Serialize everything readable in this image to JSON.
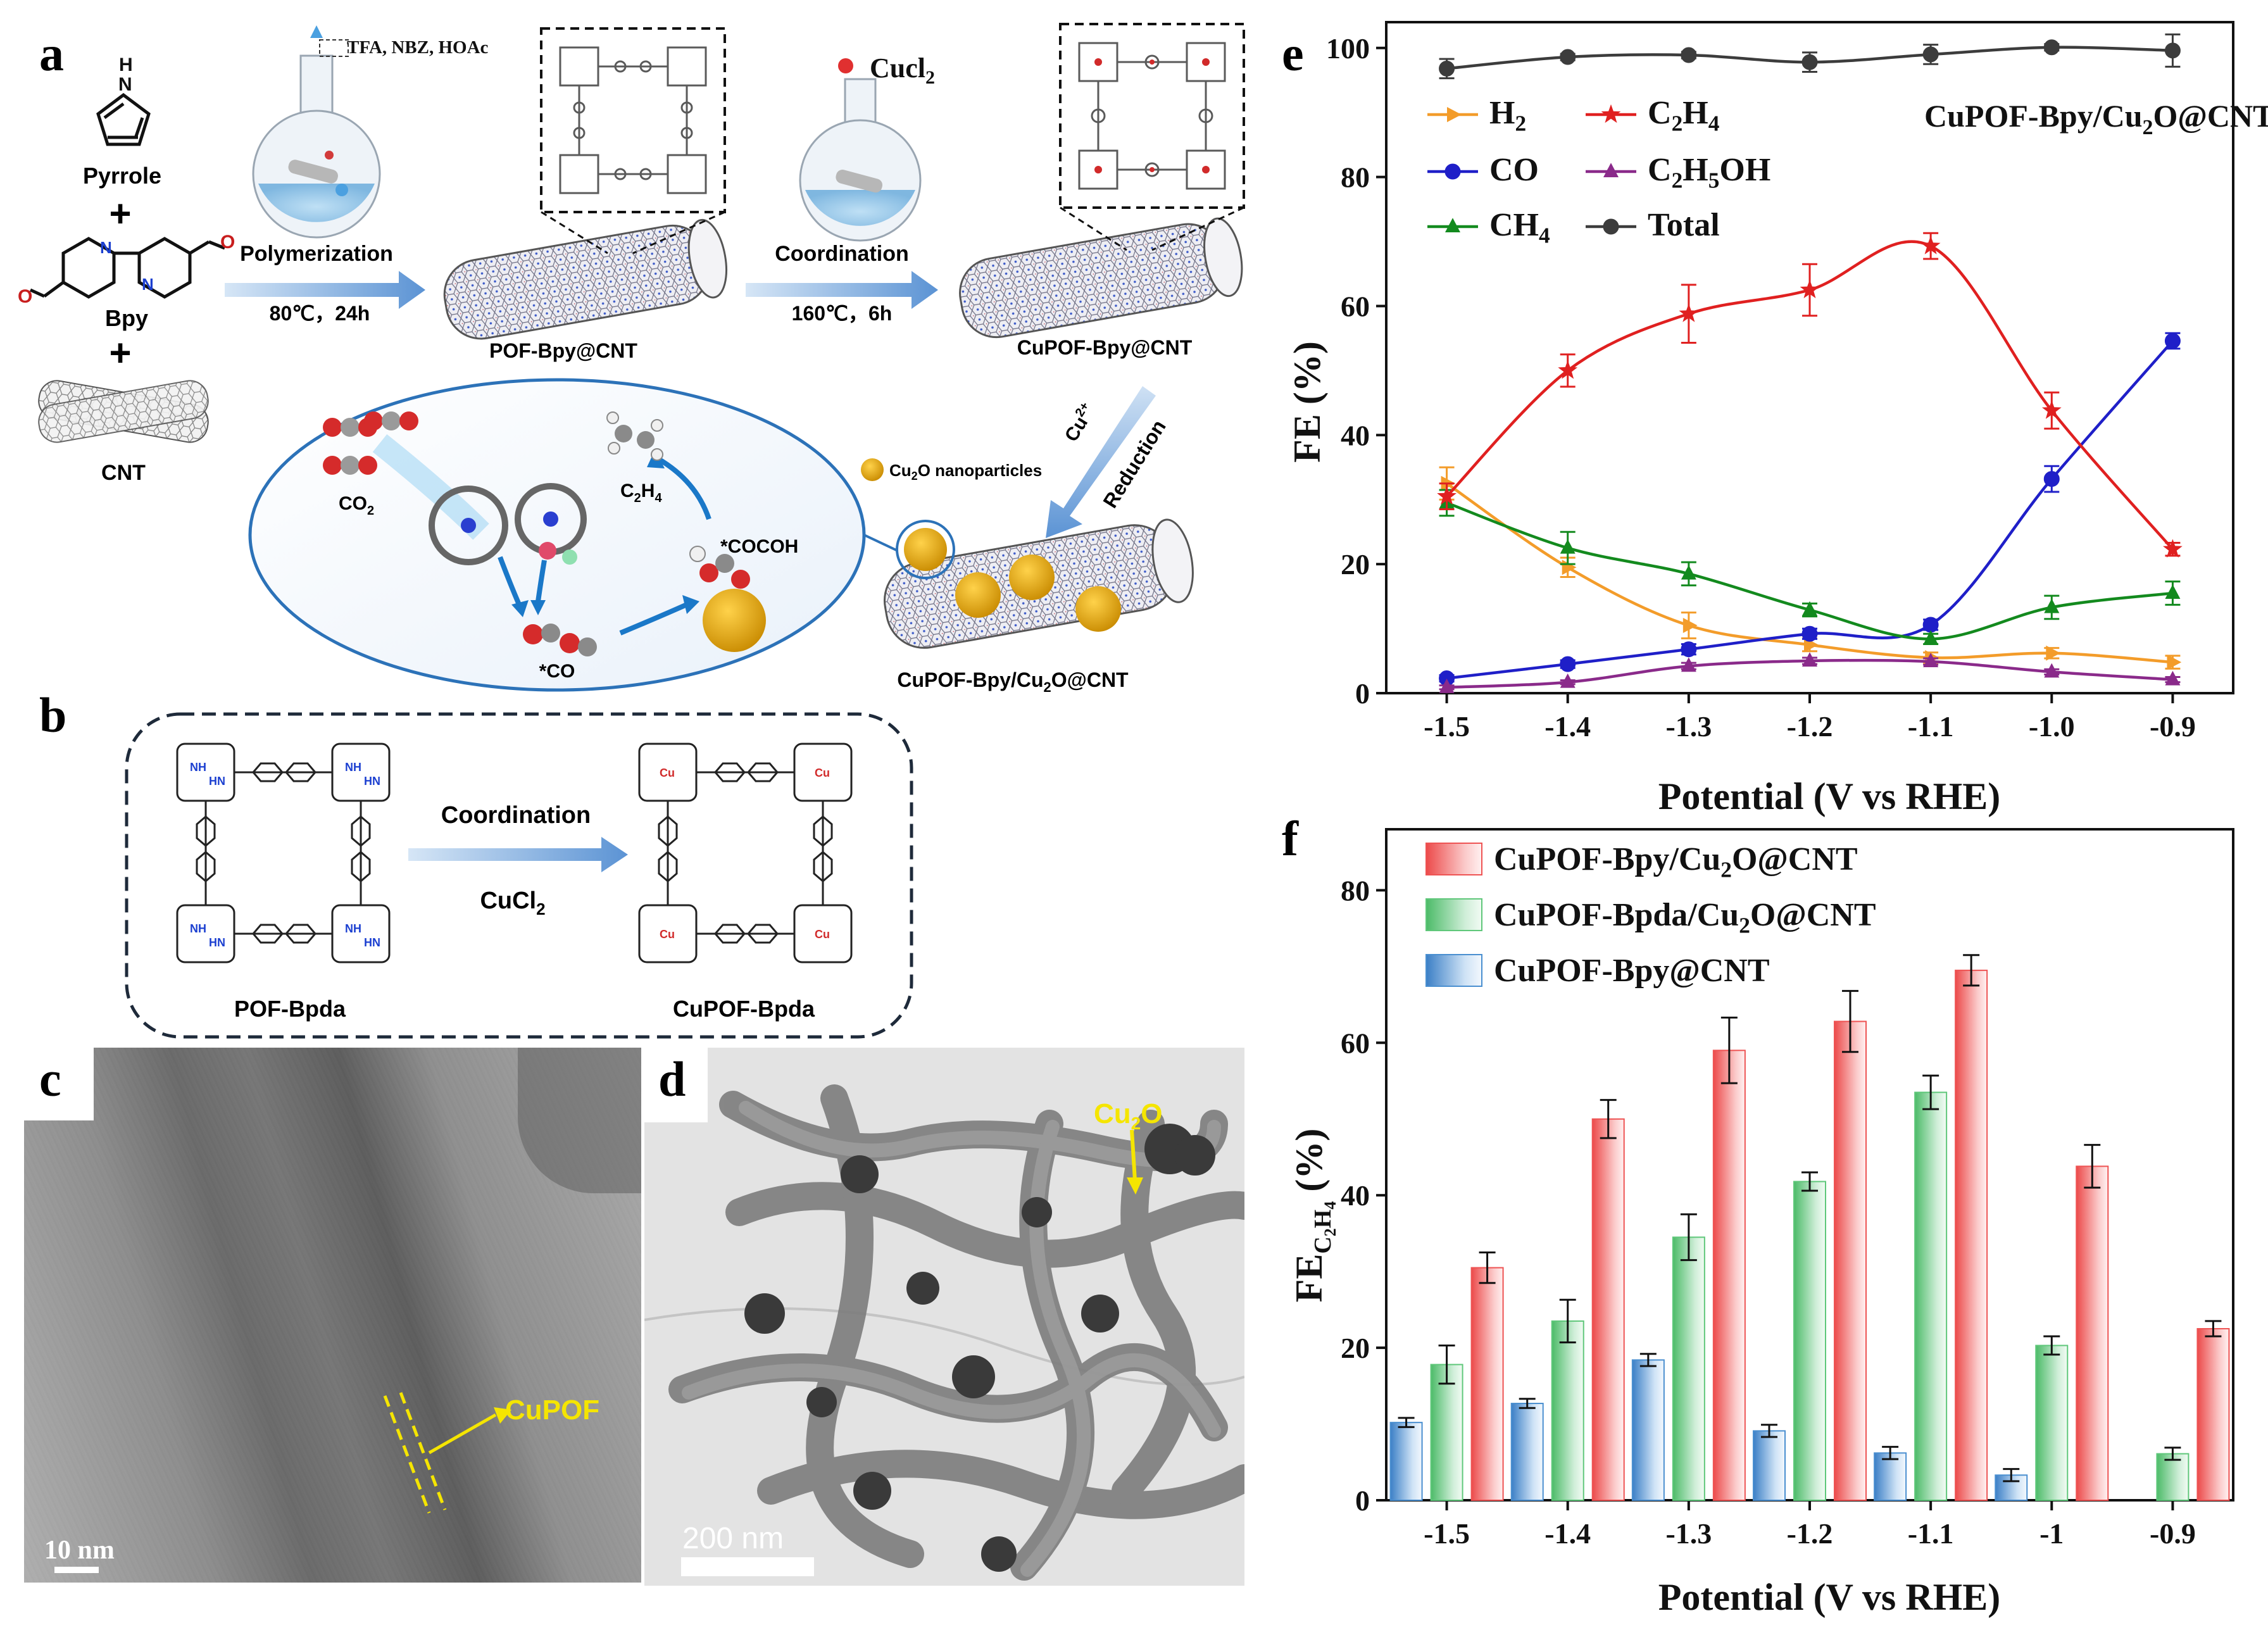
{
  "figure": {
    "panel_a": {
      "label": "a",
      "reactants": {
        "r1": "Pyrrole",
        "r2": "Bpy",
        "r3": "CNT",
        "plus": "+"
      },
      "step1": {
        "reagents": "TFA, NBZ, HOAc",
        "name": "Polymerization",
        "condition": "80℃，24h"
      },
      "product1": "POF-Bpy@CNT",
      "step2": {
        "reagent": "Cucl",
        "reagent_sub": "2",
        "name": "Coordination",
        "condition": "160℃，6h"
      },
      "product2": "CuPOF-Bpy@CNT",
      "step3": {
        "ion": "Cu",
        "ion_sup": "2+",
        "name": "Reduction"
      },
      "product3_pre": "CuPOF-Bpy/Cu",
      "product3_sub": "2",
      "product3_post": "O@CNT",
      "np_label_pre": "Cu",
      "np_label_sub": "2",
      "np_label_post": "O nanoparticles",
      "mech": {
        "co2_pre": "CO",
        "co2_sub": "2",
        "co": "*CO",
        "cocoh": "*COCOH",
        "c2h4_c": "C",
        "c2h4_s1": "2",
        "c2h4_h": "H",
        "c2h4_s2": "4"
      }
    },
    "panel_b": {
      "label": "b",
      "left": "POF-Bpda",
      "right": "CuPOF-Bpda",
      "arrow_top": "Coordination",
      "arrow_bottom_pre": "CuCl",
      "arrow_bottom_sub": "2",
      "nh": "NH",
      "hn": "HN",
      "n": "N",
      "cu": "Cu"
    },
    "panel_c": {
      "label": "c",
      "annotation": "CuPOF",
      "scale": "10 nm"
    },
    "panel_d": {
      "label": "d",
      "annotation_pre": "Cu",
      "annotation_sub": "2",
      "annotation_post": "O",
      "scale": "200 nm"
    }
  },
  "chart_data": [
    {
      "panel": "e",
      "type": "line",
      "xlabel": "Potential (V vs RHE)",
      "ylabel": "FE (%)",
      "title_pre": "CuPOF-Bpy/Cu",
      "title_sub": "2",
      "title_post": "O@CNT",
      "xlim": [
        -1.55,
        -0.85
      ],
      "ylim": [
        0,
        104
      ],
      "x_ticks": [
        "-1.5",
        "-1.4",
        "-1.3",
        "-1.2",
        "-1.1",
        "-1.0",
        "-0.9"
      ],
      "x_tick_values": [
        -1.5,
        -1.4,
        -1.3,
        -1.2,
        -1.1,
        -1.0,
        -0.9
      ],
      "y_ticks": [
        "0",
        "20",
        "40",
        "60",
        "80",
        "100"
      ],
      "y_tick_values": [
        0,
        20,
        40,
        60,
        80,
        100
      ],
      "x": [
        -1.5,
        -1.4,
        -1.3,
        -1.2,
        -1.1,
        -1.0,
        -0.9
      ],
      "series": [
        {
          "name_pre": "H",
          "name_sub": "2",
          "color": "#f39c2a",
          "marker": "triangle-right",
          "values": [
            32.5,
            19.5,
            10.5,
            7.5,
            5.5,
            6.2,
            4.8
          ],
          "errors": [
            2.5,
            1.5,
            2,
            1,
            0.8,
            0.8,
            1
          ]
        },
        {
          "name_pre": "CO",
          "name_sub": "",
          "color": "#1f1fc8",
          "marker": "circle",
          "values": [
            2.3,
            4.5,
            6.8,
            9.2,
            10.6,
            33.2,
            54.6
          ],
          "errors": [
            0.5,
            0.6,
            0.8,
            0.8,
            0.8,
            2,
            1.2
          ]
        },
        {
          "name_pre": "CH",
          "name_sub": "4",
          "color": "#138a1e",
          "marker": "triangle-up",
          "values": [
            29.5,
            22.5,
            18.5,
            12.9,
            8.4,
            13.3,
            15.5
          ],
          "errors": [
            2,
            2.5,
            1.8,
            1,
            0.8,
            1.8,
            1.8
          ]
        },
        {
          "name_pre": "C",
          "name_sub": "2",
          "name_mid": "H",
          "name_sub2": "4",
          "color": "#e02020",
          "marker": "star",
          "values": [
            30.5,
            50,
            58.8,
            62.5,
            69.3,
            43.8,
            22.3
          ],
          "errors": [
            2,
            2.5,
            4.5,
            4,
            2,
            2.8,
            1
          ]
        },
        {
          "name_pre": "C",
          "name_sub": "2",
          "name_mid": "H",
          "name_sub2": "5",
          "name_post": "OH",
          "color": "#8a2a8a",
          "marker": "triangle-up",
          "values": [
            0.9,
            1.7,
            4.2,
            5,
            4.9,
            3.3,
            2.1
          ],
          "errors": [
            0.3,
            0.3,
            0.5,
            0.5,
            0.5,
            0.4,
            0.4
          ]
        },
        {
          "name_pre": "Total",
          "name_sub": "",
          "color": "#3c3c3c",
          "marker": "circle",
          "values": [
            96.8,
            98.6,
            98.9,
            97.8,
            99,
            100.1,
            99.6
          ],
          "errors": [
            1.5,
            0.5,
            0.5,
            1.5,
            1.5,
            0.5,
            2.5
          ]
        }
      ]
    },
    {
      "panel": "f",
      "type": "bar",
      "xlabel": "Potential (V vs RHE)",
      "ylabel_pre": "FE",
      "ylabel_sub1": "C",
      "ylabel_sub2": "2",
      "ylabel_sub3": "H",
      "ylabel_sub4": "4",
      "ylabel_post": " (%)",
      "categories": [
        "-1.5",
        "-1.4",
        "-1.3",
        "-1.2",
        "-1.1",
        "-1",
        "-0.9"
      ],
      "ylim": [
        0,
        88
      ],
      "y_ticks": [
        "0",
        "20",
        "40",
        "60",
        "80"
      ],
      "y_tick_values": [
        0,
        20,
        40,
        60,
        80
      ],
      "series": [
        {
          "name_pre": "CuPOF-Bpy@CNT",
          "name_sub": "",
          "name_post": "",
          "color": "#4a8fd0",
          "values": [
            10.2,
            12.7,
            18.4,
            9.1,
            6.2,
            3.3,
            null
          ],
          "errors": [
            0.6,
            0.6,
            0.8,
            0.8,
            0.8,
            0.8,
            0
          ]
        },
        {
          "name_pre": "CuPOF-Bpda/Cu",
          "name_sub": "2",
          "name_post": "O@CNT",
          "color": "#5fc77a",
          "values": [
            17.8,
            23.5,
            34.5,
            41.8,
            53.5,
            20.3,
            6.1
          ],
          "errors": [
            2.5,
            2.8,
            3,
            1.2,
            2.2,
            1.2,
            0.8
          ]
        },
        {
          "name_pre": "CuPOF-Bpy/Cu",
          "name_sub": "2",
          "name_post": "O@CNT",
          "color": "#ee5353",
          "values": [
            30.5,
            50,
            59,
            62.8,
            69.5,
            43.8,
            22.5
          ],
          "errors": [
            2,
            2.5,
            4.3,
            4,
            2,
            2.8,
            1
          ]
        }
      ],
      "legend_order": [
        2,
        1,
        0
      ]
    }
  ]
}
